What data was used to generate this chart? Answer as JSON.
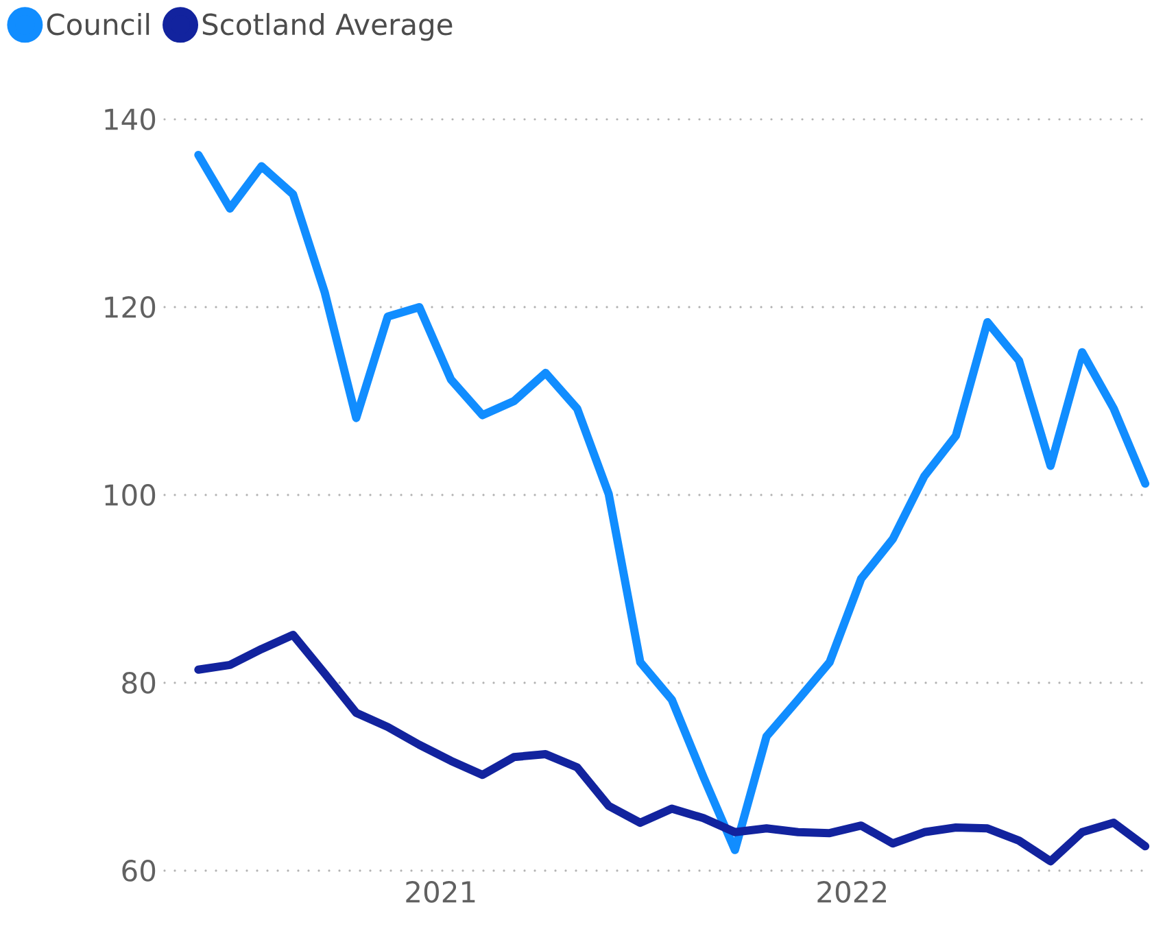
{
  "chart_data": {
    "type": "line",
    "x": [
      "2020-05-31",
      "2020-06-28",
      "2020-07-26",
      "2020-08-23",
      "2020-09-20",
      "2020-10-18",
      "2020-11-15",
      "2020-12-13",
      "2021-01-10",
      "2021-02-07",
      "2021-03-07",
      "2021-04-04",
      "2021-05-02",
      "2021-05-30",
      "2021-06-27",
      "2021-07-25",
      "2021-08-22",
      "2021-09-19",
      "2021-10-17",
      "2021-11-14",
      "2021-12-12",
      "2022-01-09",
      "2022-02-06",
      "2022-03-06",
      "2022-04-03",
      "2022-05-01",
      "2022-05-29",
      "2022-06-26",
      "2022-07-24",
      "2022-08-21",
      "2022-09-18"
    ],
    "series": [
      {
        "name": "Council",
        "color": "#118dff",
        "values": [
          136.2,
          130.5,
          135,
          132,
          121.6,
          108.2,
          119,
          120,
          112.3,
          108.5,
          110,
          113,
          109.2,
          100.1,
          82.2,
          78.2,
          70,
          62.2,
          74.3,
          78.2,
          82.2,
          91.1,
          95.3,
          102,
          106.3,
          118.4,
          114.3,
          103.1,
          115.2,
          109.2,
          101.2
        ]
      },
      {
        "name": "Scotland Average",
        "color": "#12239e",
        "values": [
          81.4,
          81.9,
          83.6,
          85.1,
          81,
          76.8,
          75.3,
          73.4,
          71.7,
          70.2,
          72.1,
          72.4,
          71,
          66.9,
          65.1,
          66.6,
          65.6,
          64.1,
          64.5,
          64.1,
          64,
          64.8,
          62.9,
          64.1,
          64.6,
          64.5,
          63.2,
          61,
          64.1,
          65.1,
          62.6
        ]
      }
    ],
    "xlim": [
      "2020-05-01",
      "2022-09-24"
    ],
    "xticks": [
      {
        "value": "2021-01-01",
        "label": "2021"
      },
      {
        "value": "2022-01-01",
        "label": "2022"
      }
    ],
    "ylim": [
      60,
      140
    ],
    "yticks": [
      60,
      80,
      100,
      120,
      140
    ],
    "grid": "y",
    "legend": "top left",
    "line_style": "solid"
  }
}
